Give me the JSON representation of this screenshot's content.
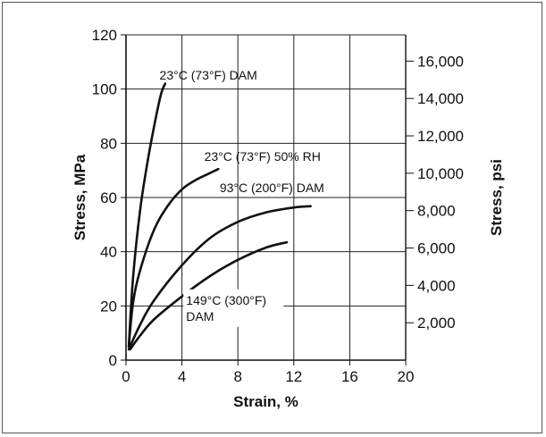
{
  "chart_data": {
    "type": "line",
    "xlabel": "Strain, %",
    "ylabel": "Stress, MPa",
    "y2label": "Stress, psi",
    "xlim": [
      0,
      20
    ],
    "ylim": [
      0,
      120
    ],
    "x_ticks": [
      "0",
      "4",
      "8",
      "12",
      "16",
      "20"
    ],
    "y_ticks": [
      "0",
      "20",
      "40",
      "60",
      "80",
      "100",
      "120"
    ],
    "y2_ticks": [
      {
        "label": "2,000",
        "value": 2000
      },
      {
        "label": "4,000",
        "value": 4000
      },
      {
        "label": "6,000",
        "value": 6000
      },
      {
        "label": "8,000",
        "value": 8000
      },
      {
        "label": "10,000",
        "value": 10000
      },
      {
        "label": "12,000",
        "value": 12000
      },
      {
        "label": "14,000",
        "value": 14000
      },
      {
        "label": "16,000",
        "value": 16000
      }
    ],
    "grid": true,
    "series": [
      {
        "name": "23°C (73°F) DAM",
        "x": [
          0.2,
          0.5,
          1.0,
          1.5,
          2.0,
          2.5,
          2.8
        ],
        "y": [
          5,
          30,
          55,
          72,
          86,
          98,
          102
        ]
      },
      {
        "name": "23°C (73°F) 50% RH",
        "x": [
          0.2,
          0.5,
          1.0,
          2.0,
          3.0,
          4.0,
          5.0,
          6.0,
          6.6
        ],
        "y": [
          5,
          21,
          33,
          48,
          57,
          63,
          66.5,
          69,
          70.5
        ]
      },
      {
        "name": "93°C (200°F) DAM",
        "x": [
          0.2,
          1.0,
          2.0,
          4.0,
          6.0,
          8.0,
          10.0,
          12.0,
          13.2
        ],
        "y": [
          4,
          13,
          22,
          35,
          45,
          51,
          54.5,
          56.3,
          56.8
        ]
      },
      {
        "name": "149°C (300°F) DAM",
        "x": [
          0.3,
          1.0,
          2.0,
          4.0,
          6.0,
          8.0,
          10.0,
          11.5
        ],
        "y": [
          4,
          9,
          15,
          23.5,
          31,
          37,
          41.5,
          43.5
        ]
      }
    ],
    "annotations": [
      {
        "id": "a1",
        "line1": "23°C (73°F) DAM",
        "line2": ""
      },
      {
        "id": "a2",
        "line1": "23°C (73°F) 50% RH",
        "line2": ""
      },
      {
        "id": "a3",
        "line1": "93°C (200°F) DAM",
        "line2": ""
      },
      {
        "id": "a4",
        "line1": "149°C (300°F)",
        "line2": "DAM"
      }
    ]
  }
}
